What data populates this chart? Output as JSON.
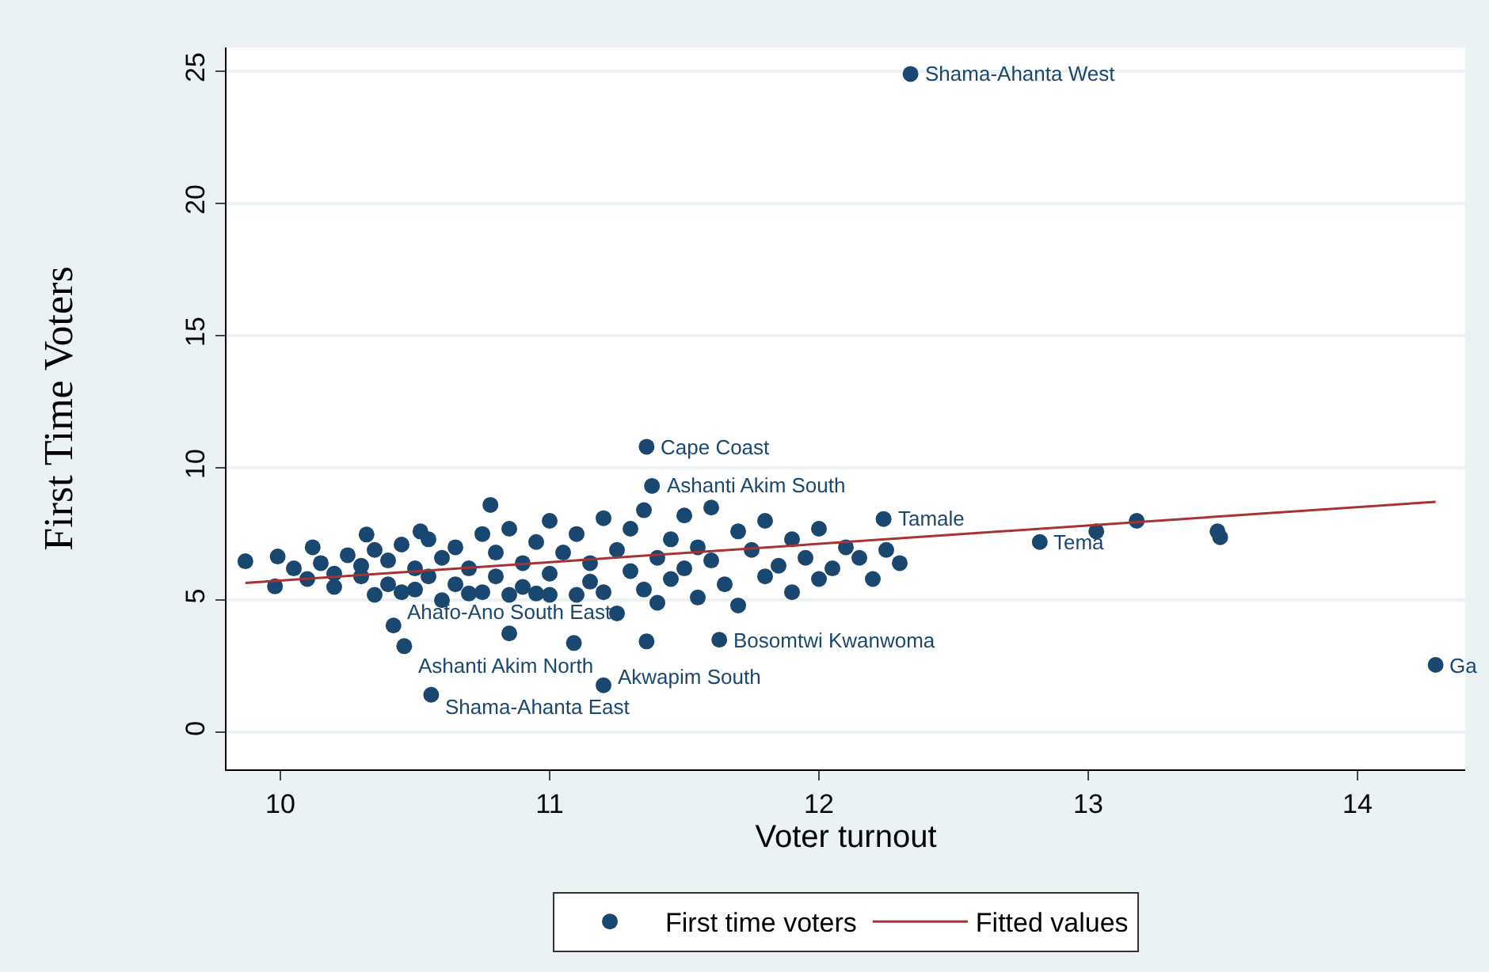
{
  "chart_data": {
    "type": "scatter",
    "xlabel": "Voter turnout",
    "ylabel": "First Time Voters",
    "xlim": [
      9.8,
      14.4
    ],
    "ylim": [
      -1.4,
      25.9
    ],
    "xticks": [
      10,
      11,
      12,
      13,
      14
    ],
    "yticks": [
      0,
      5,
      10,
      15,
      20,
      25
    ],
    "grid": "y",
    "legend": "bottom",
    "series": [
      {
        "name": "First time voters",
        "marker": "circle",
        "color": "#1a476f",
        "x": [
          9.87,
          9.99,
          9.98,
          10.12,
          10.32,
          10.52,
          10.78,
          10.42,
          10.46,
          10.56,
          11.2,
          11.36,
          11.38,
          12.34,
          11.63,
          11.36,
          11.09,
          10.85,
          14.29,
          12.82,
          13.03,
          13.18,
          13.48,
          13.49,
          12.24,
          10.05,
          10.1,
          10.15,
          10.2,
          10.2,
          10.25,
          10.3,
          10.3,
          10.35,
          10.35,
          10.4,
          10.4,
          10.45,
          10.45,
          10.5,
          10.5,
          10.55,
          10.55,
          10.6,
          10.6,
          10.65,
          10.65,
          10.7,
          10.7,
          10.75,
          10.75,
          10.8,
          10.8,
          10.85,
          10.85,
          10.9,
          10.9,
          10.95,
          10.95,
          11.0,
          11.0,
          11.0,
          11.05,
          11.1,
          11.1,
          11.15,
          11.15,
          11.2,
          11.2,
          11.25,
          11.25,
          11.3,
          11.3,
          11.35,
          11.35,
          11.4,
          11.4,
          11.45,
          11.45,
          11.5,
          11.5,
          11.55,
          11.55,
          11.6,
          11.6,
          11.65,
          11.7,
          11.7,
          11.75,
          11.8,
          11.8,
          11.85,
          11.9,
          11.9,
          11.95,
          12.0,
          12.0,
          12.05,
          12.1,
          12.15,
          12.2,
          12.25,
          12.3
        ],
        "values": [
          6.47,
          6.65,
          5.52,
          7.0,
          7.48,
          7.6,
          8.6,
          4.04,
          3.26,
          1.42,
          1.78,
          10.8,
          9.32,
          24.9,
          3.5,
          3.44,
          3.38,
          3.74,
          2.55,
          7.2,
          7.6,
          8.0,
          7.6,
          7.38,
          8.07,
          6.2,
          5.8,
          6.4,
          6.0,
          5.5,
          6.7,
          5.9,
          6.3,
          5.2,
          6.9,
          5.6,
          6.5,
          5.3,
          7.1,
          5.4,
          6.2,
          5.9,
          7.3,
          5.0,
          6.6,
          5.6,
          7.0,
          5.25,
          6.2,
          5.3,
          7.5,
          5.9,
          6.8,
          5.2,
          7.7,
          5.5,
          6.4,
          7.2,
          5.25,
          6.0,
          8.0,
          5.2,
          6.8,
          5.2,
          7.5,
          5.7,
          6.4,
          8.1,
          5.3,
          6.9,
          4.5,
          6.1,
          7.7,
          5.4,
          8.4,
          6.6,
          4.9,
          7.3,
          5.8,
          8.2,
          6.2,
          5.1,
          7.0,
          6.5,
          8.5,
          5.6,
          7.6,
          4.8,
          6.9,
          5.9,
          8.0,
          6.3,
          7.3,
          5.3,
          6.6,
          7.7,
          5.8,
          6.2,
          7.0,
          6.6,
          5.8,
          6.9,
          6.4
        ]
      },
      {
        "name": "Fitted values",
        "type": "line",
        "color": "#a83232",
        "x": [
          9.87,
          14.29
        ],
        "values": [
          5.65,
          8.72
        ]
      }
    ],
    "annotations": [
      {
        "text": "Shama-Ahanta West",
        "x": 12.34,
        "y": 24.9
      },
      {
        "text": "Cape Coast",
        "x": 11.36,
        "y": 10.8
      },
      {
        "text": "Ashanti Akim South",
        "x": 11.38,
        "y": 9.32
      },
      {
        "text": "Tamale",
        "x": 12.24,
        "y": 8.07
      },
      {
        "text": "Tema",
        "x": 12.82,
        "y": 7.2
      },
      {
        "text": "Ahafo-Ano South East",
        "x": 10.42,
        "y": 4.04
      },
      {
        "text": "Ashanti Akim North",
        "x": 10.46,
        "y": 3.26
      },
      {
        "text": "Shama-Ahanta East",
        "x": 10.56,
        "y": 1.42
      },
      {
        "text": "Akwapim South",
        "x": 11.2,
        "y": 1.78
      },
      {
        "text": "Bosomtwi Kwanwoma",
        "x": 11.63,
        "y": 3.5
      },
      {
        "text": "Ga",
        "x": 14.29,
        "y": 2.55
      }
    ]
  }
}
